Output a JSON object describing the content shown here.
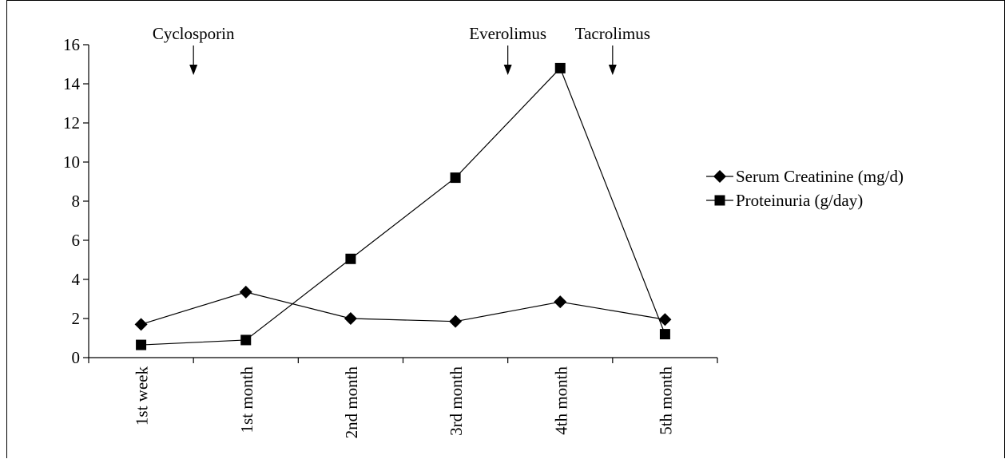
{
  "chart_data": {
    "type": "line",
    "categories": [
      "1st week",
      "1st month",
      "2nd month",
      "3rd month",
      "4th month",
      "5th month"
    ],
    "series": [
      {
        "name": "Serum Creatinine (mg/d)",
        "marker": "diamond",
        "values": [
          1.7,
          3.35,
          2.0,
          1.85,
          2.85,
          1.95
        ]
      },
      {
        "name": "Proteinuria (g/day)",
        "marker": "square",
        "values": [
          0.65,
          0.9,
          5.05,
          9.2,
          14.8,
          1.2
        ]
      }
    ],
    "ylim": [
      0,
      16
    ],
    "yticks": [
      0,
      2,
      4,
      6,
      8,
      10,
      12,
      14,
      16
    ],
    "ytick_labels": [
      "0",
      "2",
      "4",
      "6",
      "8",
      "10",
      "12",
      "14",
      "16"
    ],
    "annotations": [
      {
        "text": "Cyclosporin",
        "category_index": 0.5
      },
      {
        "text": "Everolimus",
        "category_index": 3.5
      },
      {
        "text": "Tacrolimus",
        "category_index": 4.5
      }
    ],
    "legend": "right",
    "grid": false,
    "line_color": "#000000",
    "marker_color": "#000000"
  }
}
